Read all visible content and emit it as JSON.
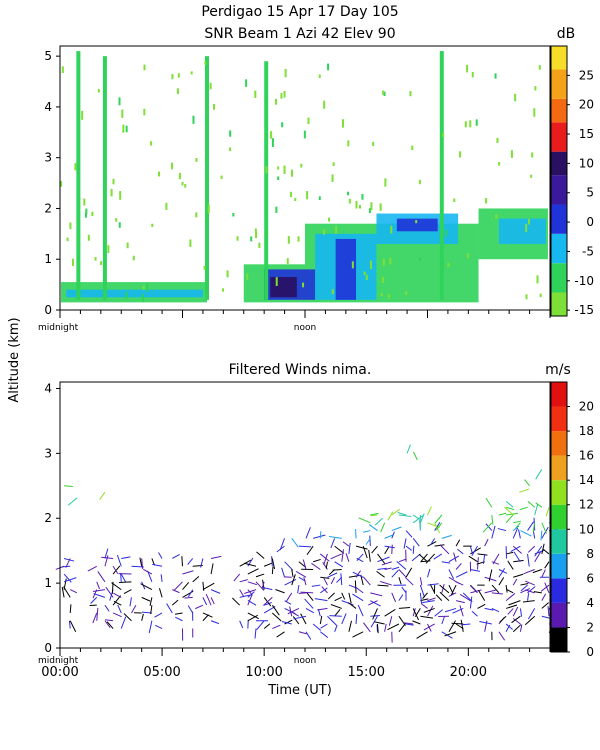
{
  "header": {
    "title_line1": "Perdigao  15 Apr 17 Day 105",
    "title_line2": "SNR Beam 1 Azi  42 Elev 90"
  },
  "shared": {
    "ylabel": "Altitude (km)",
    "xlabel": "Time (UT)",
    "midnight_label": "midnight",
    "noon_label": "noon"
  },
  "chart_data": [
    {
      "type": "heatmap",
      "title": "SNR Beam 1 Azi  42 Elev 90",
      "unit_label": "dB",
      "ylim": [
        0,
        5.2
      ],
      "xlim": [
        0,
        24
      ],
      "y_ticks": [
        "0",
        "1",
        "2",
        "3",
        "4",
        "5"
      ],
      "colorbar": {
        "ticks": [
          "-15",
          "-10",
          "-5",
          "0",
          "5",
          "10",
          "15",
          "20",
          "25"
        ],
        "tick_values": [
          -15,
          -10,
          -5,
          0,
          5,
          10,
          15,
          20,
          25
        ],
        "range": [
          -16,
          30
        ],
        "bands": [
          {
            "from": -16,
            "to": -12,
            "color": "#7ee037"
          },
          {
            "from": -12,
            "to": -7,
            "color": "#2fd35a"
          },
          {
            "from": -7,
            "to": -2,
            "color": "#17b7f0"
          },
          {
            "from": -2,
            "to": 3,
            "color": "#2033d8"
          },
          {
            "from": 3,
            "to": 8,
            "color": "#3a1a9a"
          },
          {
            "from": 8,
            "to": 12,
            "color": "#2a1060"
          },
          {
            "from": 12,
            "to": 17,
            "color": "#e81c1c"
          },
          {
            "from": 17,
            "to": 21,
            "color": "#f46a12"
          },
          {
            "from": 21,
            "to": 26,
            "color": "#f4a21a"
          },
          {
            "from": 26,
            "to": 30,
            "color": "#f7dd2a"
          }
        ]
      },
      "regions": [
        {
          "t0": 0.05,
          "t1": 7.2,
          "h0": 0.15,
          "h1": 0.55,
          "snr": -11
        },
        {
          "t0": 0.3,
          "t1": 7.0,
          "h0": 0.25,
          "h1": 0.4,
          "snr": -5
        },
        {
          "t0": 9.0,
          "t1": 12.0,
          "h0": 0.15,
          "h1": 0.9,
          "snr": -10
        },
        {
          "t0": 12.0,
          "t1": 20.5,
          "h0": 0.15,
          "h1": 1.7,
          "snr": -10
        },
        {
          "t0": 20.5,
          "t1": 23.9,
          "h0": 1.0,
          "h1": 2.0,
          "snr": -11
        },
        {
          "t0": 10.0,
          "t1": 12.5,
          "h0": 0.2,
          "h1": 0.8,
          "snr": -2
        },
        {
          "t0": 10.3,
          "t1": 11.6,
          "h0": 0.25,
          "h1": 0.65,
          "snr": 8
        },
        {
          "t0": 12.5,
          "t1": 15.5,
          "h0": 0.2,
          "h1": 1.5,
          "snr": -4
        },
        {
          "t0": 13.5,
          "t1": 14.5,
          "h0": 0.2,
          "h1": 1.4,
          "snr": 1
        },
        {
          "t0": 15.5,
          "t1": 19.5,
          "h0": 1.3,
          "h1": 1.9,
          "snr": -5
        },
        {
          "t0": 16.5,
          "t1": 18.5,
          "h0": 1.55,
          "h1": 1.8,
          "snr": 1
        },
        {
          "t0": 21.5,
          "t1": 23.8,
          "h0": 1.3,
          "h1": 1.8,
          "snr": -5
        }
      ],
      "columns": [
        {
          "t": 0.9,
          "h0": 0.2,
          "h1": 5.1,
          "snr": -11
        },
        {
          "t": 2.2,
          "h0": 0.2,
          "h1": 5.0,
          "snr": -11
        },
        {
          "t": 7.2,
          "h0": 0.2,
          "h1": 5.0,
          "snr": -11
        },
        {
          "t": 10.1,
          "h0": 0.2,
          "h1": 4.9,
          "snr": -11
        },
        {
          "t": 18.7,
          "h0": 0.2,
          "h1": 5.1,
          "snr": -11
        }
      ]
    },
    {
      "type": "scatter",
      "title": "Filtered Winds nima.",
      "unit_label": "m/s",
      "ylim": [
        0,
        4.1
      ],
      "xlim": [
        0,
        24
      ],
      "y_ticks": [
        "0",
        "1",
        "2",
        "3",
        "4"
      ],
      "x_ticks": [
        "00:00",
        "05:00",
        "10:00",
        "15:00",
        "20:00"
      ],
      "x_tick_values": [
        0,
        5,
        10,
        15,
        20
      ],
      "colorbar": {
        "ticks": [
          "0",
          "2",
          "4",
          "6",
          "8",
          "10",
          "12",
          "14",
          "16",
          "18",
          "20"
        ],
        "tick_values": [
          0,
          2,
          4,
          6,
          8,
          10,
          12,
          14,
          16,
          18,
          20
        ],
        "range": [
          0,
          22
        ],
        "bands": [
          {
            "from": 0,
            "to": 2,
            "color": "#000000"
          },
          {
            "from": 2,
            "to": 4,
            "color": "#5a1ab0"
          },
          {
            "from": 4,
            "to": 6,
            "color": "#2a2ae0"
          },
          {
            "from": 6,
            "to": 8,
            "color": "#1a9ff0"
          },
          {
            "from": 8,
            "to": 10,
            "color": "#20c8a0"
          },
          {
            "from": 10,
            "to": 12,
            "color": "#30d030"
          },
          {
            "from": 12,
            "to": 14,
            "color": "#90e020"
          },
          {
            "from": 14,
            "to": 16,
            "color": "#f0a020"
          },
          {
            "from": 16,
            "to": 18,
            "color": "#f07010"
          },
          {
            "from": 18,
            "to": 20,
            "color": "#f03010"
          },
          {
            "from": 20,
            "to": 22,
            "color": "#e01010"
          }
        ]
      }
    }
  ]
}
